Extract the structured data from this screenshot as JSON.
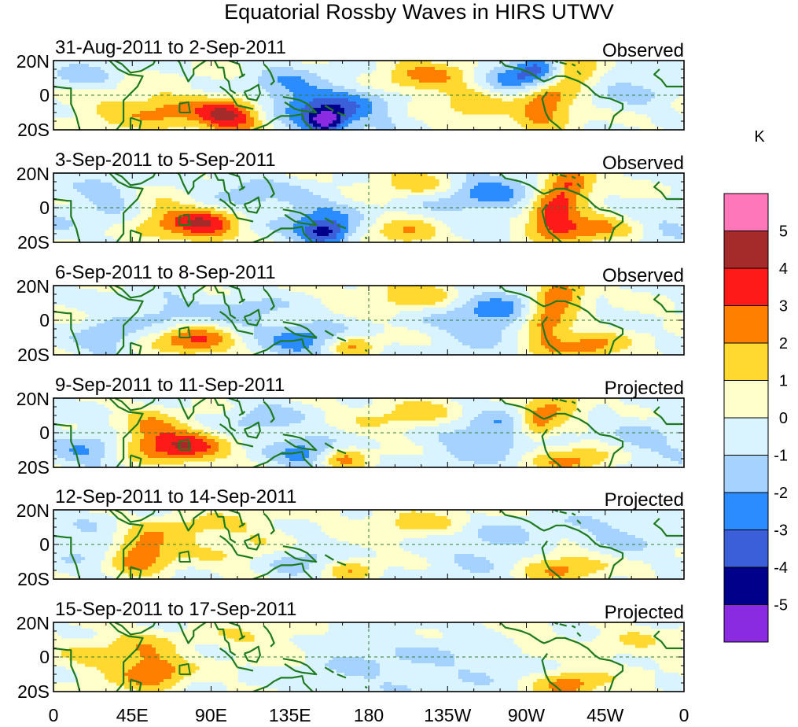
{
  "title": "Equatorial Rossby Waves in HIRS UTWV",
  "units": "K",
  "panels": [
    {
      "date": "31-Aug-2011 to 2-Sep-2011",
      "kind": "Observed"
    },
    {
      "date": "3-Sep-2011 to 5-Sep-2011",
      "kind": "Observed"
    },
    {
      "date": "6-Sep-2011 to 8-Sep-2011",
      "kind": "Observed"
    },
    {
      "date": "9-Sep-2011 to 11-Sep-2011",
      "kind": "Projected"
    },
    {
      "date": "12-Sep-2011 to 14-Sep-2011",
      "kind": "Projected"
    },
    {
      "date": "15-Sep-2011 to 17-Sep-2011",
      "kind": "Projected"
    }
  ],
  "lat_labels": [
    "20N",
    "0",
    "20S"
  ],
  "lon_labels": [
    "0",
    "45E",
    "90E",
    "135E",
    "180",
    "135W",
    "90W",
    "45W",
    "0"
  ],
  "colorbar": {
    "labels": [
      "5",
      "4",
      "3",
      "2",
      "1",
      "0",
      "-1",
      "-2",
      "-3",
      "-4",
      "-5"
    ],
    "colors": [
      "#ff77bb",
      "#a52a2a",
      "#ff1a1a",
      "#ff7f00",
      "#ffd92f",
      "#ffffcc",
      "#d9f4ff",
      "#a6d2ff",
      "#2a8cff",
      "#3a5fd9",
      "#00008b",
      "#8a2be2"
    ]
  },
  "anomalies": [
    [
      [
        100,
        -12,
        4.3,
        14,
        7
      ],
      [
        65,
        -10,
        1.8,
        14,
        7
      ],
      [
        155,
        -15,
        -4,
        8,
        5
      ],
      [
        155,
        -8,
        -2.5,
        20,
        10
      ],
      [
        35,
        -5,
        1.2,
        22,
        10
      ],
      [
        20,
        10,
        -1.5,
        14,
        8
      ],
      [
        130,
        5,
        -1.5,
        15,
        10
      ],
      [
        210,
        10,
        2.2,
        20,
        8
      ],
      [
        240,
        -8,
        1.5,
        14,
        8
      ],
      [
        280,
        -5,
        3.3,
        12,
        9
      ],
      [
        295,
        15,
        3.5,
        12,
        6
      ],
      [
        280,
        15,
        -3.5,
        10,
        6
      ],
      [
        265,
        10,
        -2.5,
        14,
        8
      ],
      [
        330,
        5,
        -1.2,
        18,
        10
      ],
      [
        180,
        -5,
        -1,
        20,
        10
      ]
    ],
    [
      [
        85,
        -10,
        3.8,
        14,
        7
      ],
      [
        60,
        -5,
        1.5,
        12,
        8
      ],
      [
        155,
        -15,
        -3.8,
        10,
        5
      ],
      [
        150,
        -5,
        -2,
        18,
        9
      ],
      [
        210,
        15,
        2.2,
        20,
        6
      ],
      [
        200,
        -15,
        2,
        14,
        6
      ],
      [
        245,
        10,
        -2.5,
        24,
        10
      ],
      [
        285,
        -3,
        3.8,
        10,
        9
      ],
      [
        295,
        15,
        3.5,
        10,
        6
      ],
      [
        305,
        -12,
        2.5,
        16,
        6
      ],
      [
        110,
        10,
        -1.5,
        16,
        8
      ],
      [
        30,
        5,
        -1.5,
        14,
        10
      ],
      [
        350,
        -10,
        -1,
        14,
        8
      ]
    ],
    [
      [
        80,
        -12,
        3.2,
        16,
        6
      ],
      [
        65,
        5,
        -1.5,
        14,
        8
      ],
      [
        145,
        -12,
        -2.5,
        18,
        8
      ],
      [
        170,
        -15,
        2.5,
        10,
        5
      ],
      [
        210,
        15,
        2,
        24,
        7
      ],
      [
        250,
        5,
        -2.5,
        25,
        12
      ],
      [
        280,
        -3,
        3.5,
        10,
        9
      ],
      [
        290,
        15,
        3.5,
        10,
        6
      ],
      [
        305,
        -15,
        2.5,
        14,
        6
      ],
      [
        30,
        -10,
        -2,
        12,
        8
      ],
      [
        110,
        5,
        -1.5,
        16,
        8
      ]
    ],
    [
      [
        75,
        -8,
        3.5,
        16,
        7
      ],
      [
        55,
        0,
        2,
        12,
        9
      ],
      [
        145,
        -12,
        -2.5,
        14,
        7
      ],
      [
        165,
        -15,
        2.5,
        10,
        5
      ],
      [
        210,
        10,
        1.8,
        24,
        8
      ],
      [
        250,
        0,
        -2.2,
        28,
        12
      ],
      [
        275,
        5,
        3,
        8,
        8
      ],
      [
        295,
        -15,
        2.5,
        16,
        6
      ],
      [
        290,
        15,
        2.5,
        10,
        6
      ],
      [
        120,
        8,
        -1.5,
        16,
        8
      ],
      [
        20,
        -10,
        -1.8,
        12,
        8
      ],
      [
        340,
        -5,
        -1.2,
        16,
        10
      ]
    ],
    [
      [
        50,
        -5,
        3,
        12,
        8
      ],
      [
        75,
        8,
        1.2,
        16,
        8
      ],
      [
        140,
        -10,
        -1.5,
        16,
        8
      ],
      [
        170,
        -15,
        1.8,
        10,
        5
      ],
      [
        210,
        12,
        1.5,
        24,
        8
      ],
      [
        250,
        0,
        -1.5,
        28,
        12
      ],
      [
        290,
        -12,
        2.5,
        18,
        7
      ],
      [
        320,
        5,
        -1.2,
        18,
        10
      ],
      [
        110,
        0,
        1,
        18,
        12
      ],
      [
        20,
        0,
        -1.2,
        12,
        10
      ]
    ],
    [
      [
        50,
        0,
        1.8,
        14,
        10
      ],
      [
        60,
        -10,
        2,
        12,
        7
      ],
      [
        180,
        -5,
        -1,
        30,
        15
      ],
      [
        250,
        0,
        -1,
        26,
        12
      ],
      [
        295,
        -15,
        2.5,
        14,
        6
      ],
      [
        270,
        8,
        1.2,
        16,
        8
      ],
      [
        120,
        10,
        1,
        22,
        8
      ],
      [
        330,
        8,
        0.8,
        14,
        8
      ],
      [
        20,
        0,
        0.8,
        14,
        10
      ]
    ]
  ]
}
